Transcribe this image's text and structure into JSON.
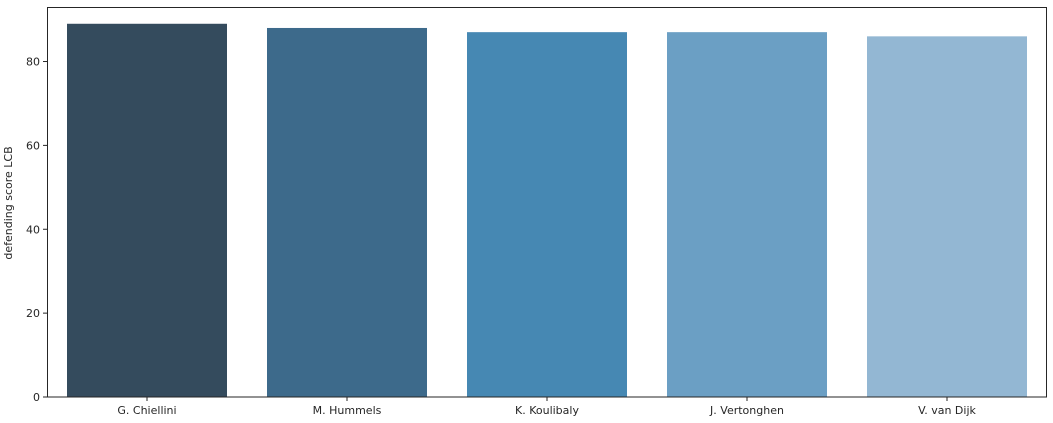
{
  "chart_data": {
    "type": "bar",
    "title": "",
    "xlabel": "",
    "ylabel": "defending score LCB",
    "categories": [
      "G. Chiellini",
      "M. Hummels",
      "K. Koulibaly",
      "J. Vertonghen",
      "V. van Dijk"
    ],
    "values": [
      89,
      88,
      87,
      87,
      86
    ],
    "ylim": [
      0,
      93
    ],
    "yticks": [
      0,
      20,
      40,
      60,
      80
    ],
    "grid": false,
    "legend": "none",
    "colors": [
      "#344b5d",
      "#3d6a8b",
      "#4688b3",
      "#6b9fc4",
      "#93b7d3"
    ]
  }
}
